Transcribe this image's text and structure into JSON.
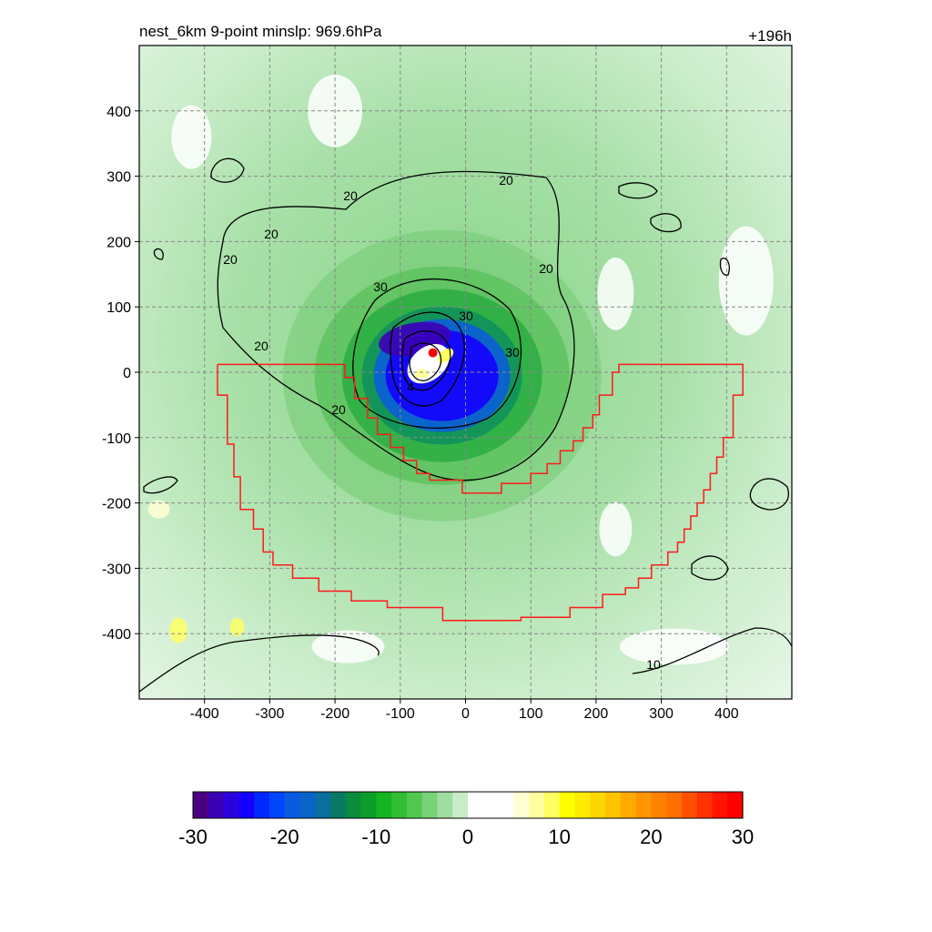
{
  "chart_data": {
    "type": "heatmap",
    "title_left": "nest_6km  9-point minslp: 969.6hPa",
    "title_right": "+196h",
    "xlabel": "",
    "ylabel": "",
    "xlim": [
      -500,
      500
    ],
    "ylim": [
      -500,
      500
    ],
    "x_ticks": [
      -400,
      -300,
      -200,
      -100,
      0,
      100,
      200,
      300,
      400
    ],
    "y_ticks": [
      400,
      300,
      200,
      100,
      0,
      -100,
      -200,
      -300,
      -400
    ],
    "x_tick_labels": [
      "-400",
      "-300",
      "-200",
      "-100",
      "0",
      "100",
      "200",
      "300",
      "400"
    ],
    "y_tick_labels": [
      "400",
      "300",
      "200",
      "100",
      "0",
      "-100",
      "-200",
      "-300",
      "-400"
    ],
    "grid": true,
    "center": [
      -50,
      20
    ],
    "contour_labels": [
      "20",
      "20",
      "20",
      "20",
      "20",
      "20",
      "20",
      "30",
      "30",
      "30",
      "4",
      "10"
    ],
    "colorbar": {
      "min": -30,
      "max": 30,
      "ticks": [
        -30,
        -20,
        -10,
        0,
        10,
        20,
        30
      ],
      "tick_labels": [
        "-30",
        "-20",
        "-10",
        "0",
        "10",
        "20",
        "30"
      ],
      "colors": [
        "#4b0082",
        "#3c00b4",
        "#2a00dc",
        "#1400ff",
        "#0028ff",
        "#0046ff",
        "#0a5ae0",
        "#0a64c8",
        "#0a6ea0",
        "#087a64",
        "#0a8c3c",
        "#0a9e28",
        "#14b41e",
        "#32be32",
        "#50c850",
        "#78d278",
        "#a0dca0",
        "#c8ebc8",
        "#ffffff",
        "#ffffff",
        "#ffffff",
        "#ffffd2",
        "#ffffa0",
        "#ffff64",
        "#ffff00",
        "#ffeb00",
        "#ffd700",
        "#ffc300",
        "#ffaa00",
        "#ff9600",
        "#ff8200",
        "#ff6e00",
        "#ff5000",
        "#ff3200",
        "#ff1400",
        "#ff0000"
      ]
    }
  }
}
